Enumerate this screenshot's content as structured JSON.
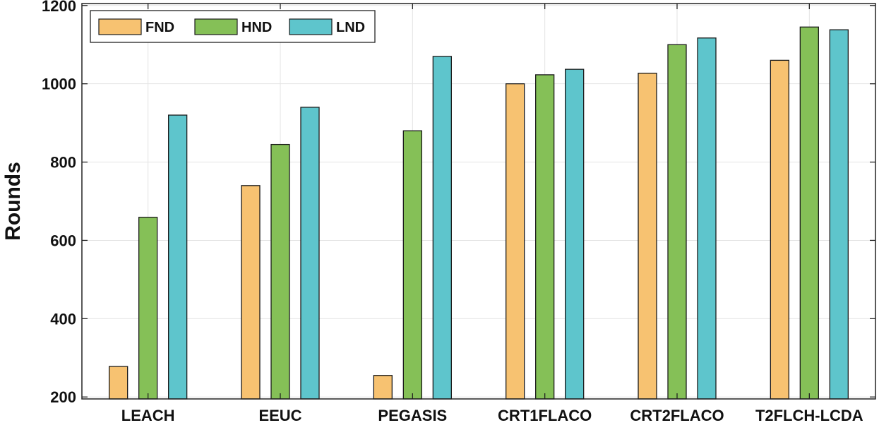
{
  "chart_data": {
    "type": "bar",
    "title": "",
    "xlabel": "",
    "ylabel": "Rounds",
    "categories": [
      "LEACH",
      "EEUC",
      "PEGASIS",
      "CRT1FLACO",
      "CRT2FLACO",
      "T2FLCH-LCDA"
    ],
    "series": [
      {
        "name": "FND",
        "color": "#f7c271",
        "values": [
          278,
          740,
          255,
          1000,
          1027,
          1060
        ]
      },
      {
        "name": "HND",
        "color": "#85c057",
        "values": [
          659,
          845,
          880,
          1023,
          1100,
          1145
        ]
      },
      {
        "name": "LND",
        "color": "#5ec5cc",
        "values": [
          920,
          940,
          1070,
          1037,
          1117,
          1138
        ]
      }
    ],
    "ylim": [
      195,
      1205
    ],
    "yticks": [
      200,
      400,
      600,
      800,
      1000,
      1200
    ],
    "grid": true,
    "legend_position": "top-left",
    "legend_orientation": "horizontal"
  }
}
